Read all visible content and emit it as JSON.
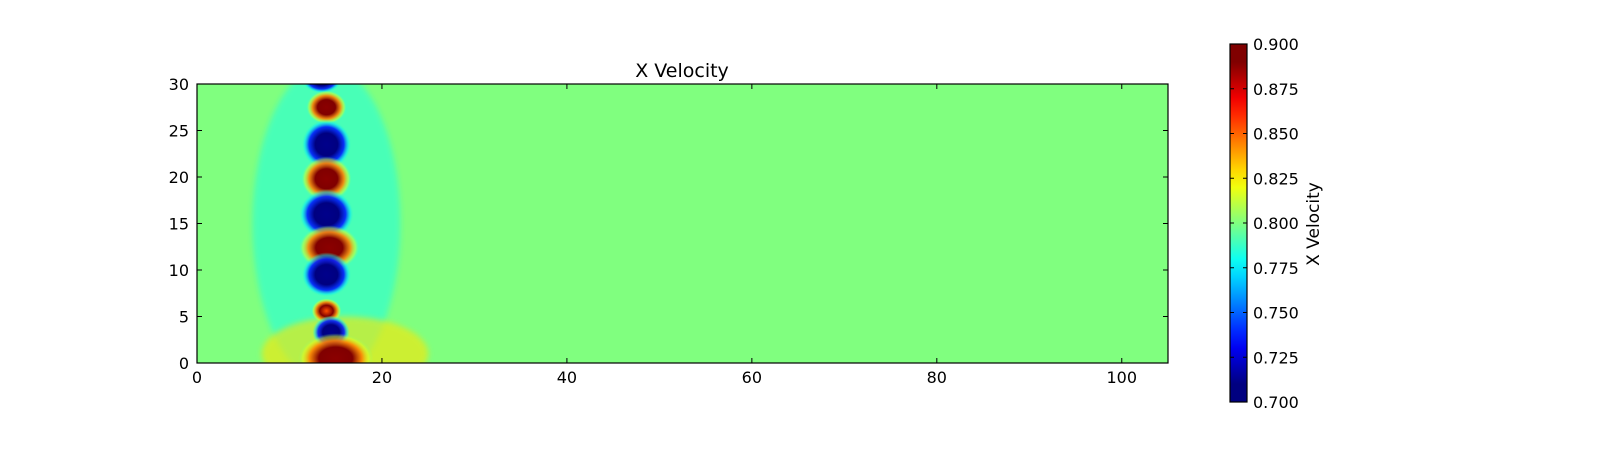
{
  "chart_data": {
    "type": "heatmap",
    "title": "X Velocity",
    "xlabel": "",
    "ylabel": "",
    "xlim": [
      0,
      105
    ],
    "ylim": [
      0,
      30
    ],
    "x_ticks": [
      0,
      20,
      40,
      60,
      80,
      100
    ],
    "y_ticks": [
      0,
      5,
      10,
      15,
      20,
      25,
      30
    ],
    "background_value": 0.8,
    "colormap": "jet",
    "grid": false,
    "colorbar": {
      "label": "X Velocity",
      "range": [
        0.7,
        0.9
      ],
      "tick_values": [
        0.7,
        0.725,
        0.75,
        0.775,
        0.8,
        0.825,
        0.85,
        0.875,
        0.9
      ],
      "tick_labels": [
        "0.700",
        "0.725",
        "0.750",
        "0.775",
        "0.800",
        "0.825",
        "0.850",
        "0.875",
        "0.900"
      ],
      "placement": "right"
    },
    "features": [
      {
        "x": 13.5,
        "y": 30.5,
        "rx": 1.6,
        "ry": 1.0,
        "value": 0.7
      },
      {
        "x": 14.0,
        "y": 27.5,
        "rx": 1.6,
        "ry": 1.2,
        "value": 0.9
      },
      {
        "x": 14.0,
        "y": 23.5,
        "rx": 2.0,
        "ry": 1.8,
        "value": 0.7
      },
      {
        "x": 14.0,
        "y": 19.8,
        "rx": 2.0,
        "ry": 1.6,
        "value": 0.9
      },
      {
        "x": 14.0,
        "y": 16.0,
        "rx": 2.2,
        "ry": 1.8,
        "value": 0.7
      },
      {
        "x": 14.3,
        "y": 12.4,
        "rx": 2.4,
        "ry": 1.6,
        "value": 0.9
      },
      {
        "x": 14.0,
        "y": 9.5,
        "rx": 2.0,
        "ry": 1.6,
        "value": 0.7
      },
      {
        "x": 14.0,
        "y": 5.6,
        "rx": 1.2,
        "ry": 0.9,
        "value": 0.86
      },
      {
        "x": 14.5,
        "y": 3.3,
        "rx": 1.5,
        "ry": 1.2,
        "value": 0.7
      },
      {
        "x": 15.0,
        "y": 0.5,
        "rx": 3.0,
        "ry": 1.8,
        "value": 0.9
      }
    ]
  }
}
